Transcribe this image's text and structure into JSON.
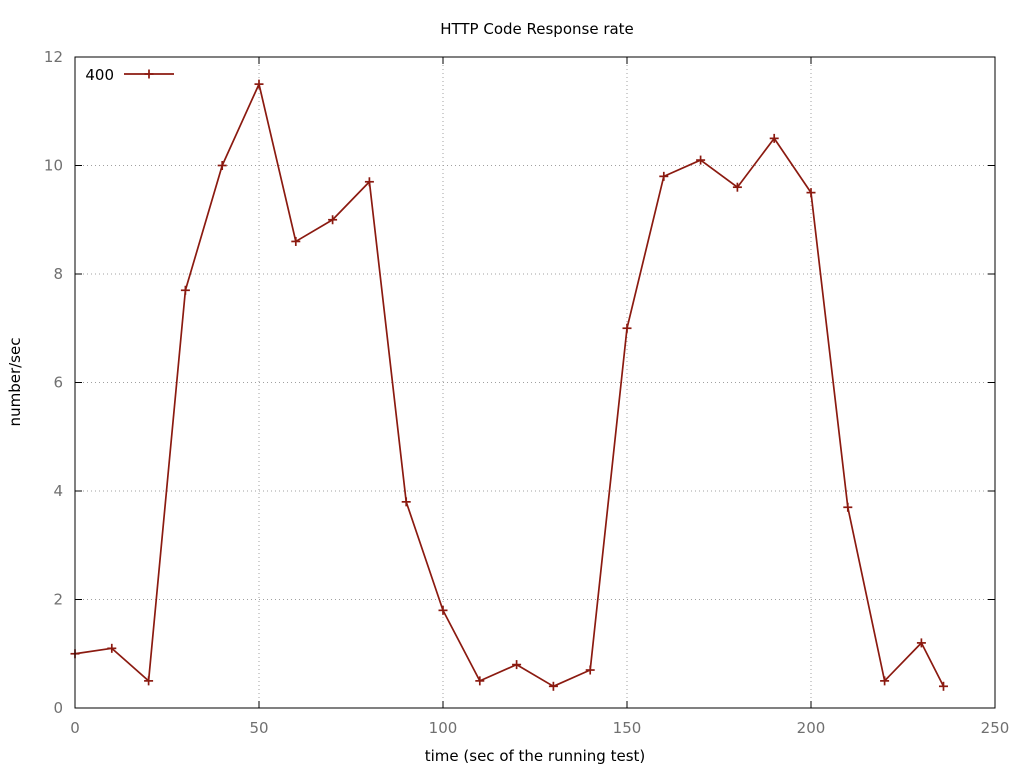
{
  "chart_data": {
    "type": "line",
    "title": "HTTP Code Response rate",
    "xlabel": "time (sec of the running test)",
    "ylabel": "number/sec",
    "xlim": [
      0,
      250
    ],
    "ylim": [
      0,
      12
    ],
    "x_ticks": [
      0,
      50,
      100,
      150,
      200,
      250
    ],
    "y_ticks": [
      0,
      2,
      4,
      6,
      8,
      10,
      12
    ],
    "grid": true,
    "grid_style": "dotted",
    "legend_position": "top-left",
    "series": [
      {
        "name": "400",
        "color": "#8b1a10",
        "marker": "plus",
        "points": [
          [
            0,
            1.0
          ],
          [
            10,
            1.1
          ],
          [
            20,
            0.5
          ],
          [
            30,
            7.7
          ],
          [
            40,
            10.0
          ],
          [
            50,
            11.5
          ],
          [
            60,
            8.6
          ],
          [
            70,
            9.0
          ],
          [
            80,
            9.7
          ],
          [
            90,
            3.8
          ],
          [
            100,
            1.8
          ],
          [
            110,
            0.5
          ],
          [
            120,
            0.8
          ],
          [
            130,
            0.4
          ],
          [
            140,
            0.7
          ],
          [
            150,
            7.0
          ],
          [
            160,
            9.8
          ],
          [
            170,
            10.1
          ],
          [
            180,
            9.6
          ],
          [
            190,
            10.5
          ],
          [
            200,
            9.5
          ],
          [
            210,
            3.7
          ],
          [
            220,
            0.5
          ],
          [
            230,
            1.2
          ],
          [
            236,
            0.4
          ]
        ]
      }
    ]
  }
}
